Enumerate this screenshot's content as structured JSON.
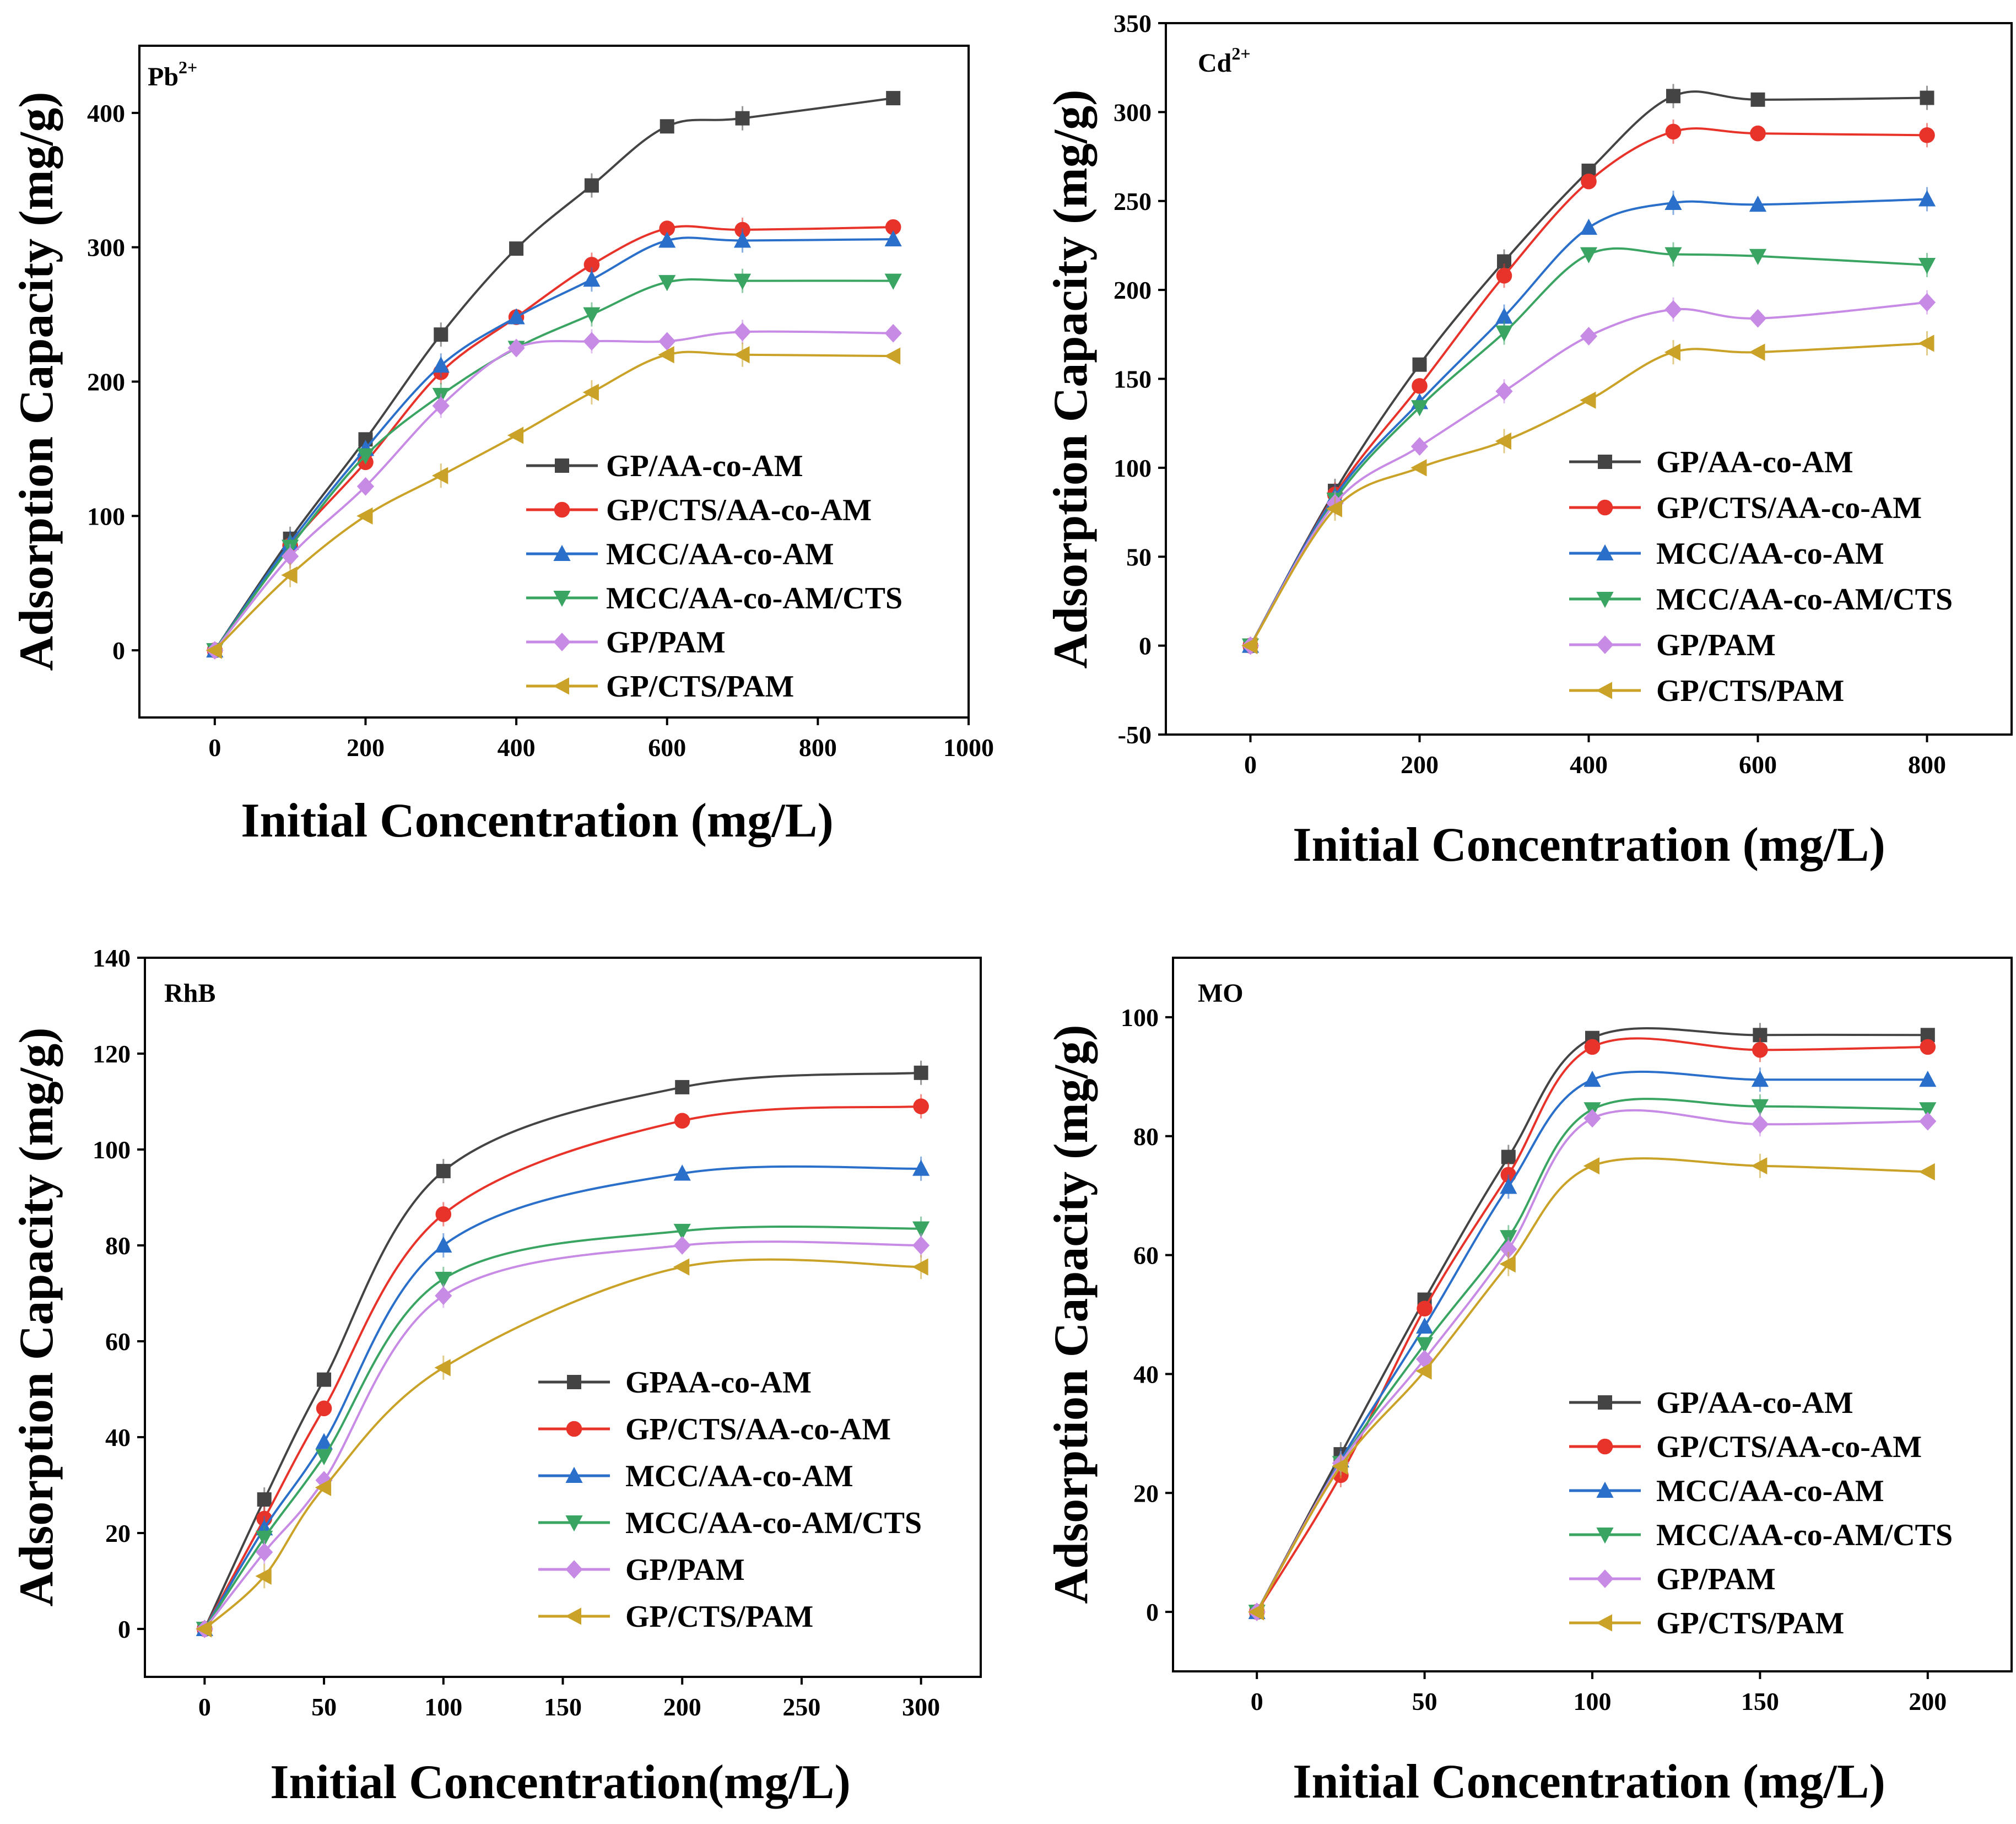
{
  "figure": "Adsorption capacity versus initial concentration for six adsorbents",
  "colors": {
    "black": "#444444",
    "red": "#e8332a",
    "blue": "#2a6fc9",
    "green": "#3aa462",
    "purple": "#c78be6",
    "gold": "#c9a227"
  },
  "chart_data": [
    {
      "type": "line",
      "annotation": "Pb",
      "annotation_sup": "2+",
      "xlabel": "Initial Concentration (mg/L)",
      "ylabel": "Adsorption Capacity (mg/g)",
      "xlim": [
        -100,
        1000
      ],
      "ylim": [
        -50,
        450
      ],
      "xticks": [
        0,
        200,
        400,
        600,
        800,
        1000
      ],
      "yticks": [
        0,
        100,
        200,
        300,
        400
      ],
      "xtick_labels": [
        "0",
        "200",
        "400",
        "600",
        "800",
        "1000"
      ],
      "ytick_labels": [
        "0",
        "100",
        "200",
        "300",
        "400"
      ],
      "x": [
        0,
        100,
        200,
        300,
        400,
        500,
        600,
        700,
        900
      ],
      "series": [
        {
          "name": "GP/AA-co-AM",
          "marker": "square",
          "color": "#444444",
          "values": [
            0,
            83,
            157,
            235,
            299,
            346,
            390,
            396,
            411
          ]
        },
        {
          "name": "GP/CTS/AA-co-AM",
          "marker": "circle",
          "color": "#e8332a",
          "values": [
            0,
            78,
            140,
            207,
            248,
            287,
            314,
            313,
            315
          ]
        },
        {
          "name": "MCC/AA-co-AM",
          "marker": "triangle-up",
          "color": "#2a6fc9",
          "values": [
            0,
            80,
            150,
            212,
            248,
            276,
            305,
            305,
            306
          ]
        },
        {
          "name": "MCC/AA-co-AM/CTS",
          "marker": "triangle-down",
          "color": "#3aa462",
          "values": [
            0,
            77,
            145,
            190,
            225,
            250,
            274,
            275,
            275
          ]
        },
        {
          "name": "GP/PAM",
          "marker": "diamond",
          "color": "#c78be6",
          "values": [
            0,
            70,
            122,
            182,
            225,
            230,
            230,
            237,
            236
          ]
        },
        {
          "name": "GP/CTS/PAM",
          "marker": "triangle-left",
          "color": "#c9a227",
          "values": [
            0,
            56,
            100,
            130,
            160,
            192,
            220,
            220,
            219
          ]
        }
      ]
    },
    {
      "type": "line",
      "annotation": "Cd",
      "annotation_sup": "2+",
      "xlabel": "Initial Concentration (mg/L)",
      "ylabel": "Adsorption Capacity (mg/g)",
      "xlim": [
        -100,
        900
      ],
      "ylim": [
        -50,
        350
      ],
      "xticks": [
        0,
        200,
        400,
        600,
        800
      ],
      "yticks": [
        -50,
        0,
        50,
        100,
        150,
        200,
        250,
        300,
        350
      ],
      "xtick_labels": [
        "0",
        "200",
        "400",
        "600",
        "800"
      ],
      "ytick_labels": [
        "-50",
        "0",
        "50",
        "100",
        "150",
        "200",
        "250",
        "300",
        "350"
      ],
      "x": [
        0,
        100,
        200,
        300,
        400,
        500,
        600,
        800
      ],
      "series": [
        {
          "name": "GP/AA-co-AM",
          "marker": "square",
          "color": "#444444",
          "values": [
            0,
            87,
            158,
            216,
            267,
            309,
            307,
            308
          ]
        },
        {
          "name": "GP/CTS/AA-co-AM",
          "marker": "circle",
          "color": "#e8332a",
          "values": [
            0,
            85,
            146,
            208,
            261,
            289,
            288,
            287
          ]
        },
        {
          "name": "MCC/AA-co-AM",
          "marker": "triangle-up",
          "color": "#2a6fc9",
          "values": [
            0,
            84,
            137,
            185,
            235,
            249,
            248,
            251
          ]
        },
        {
          "name": "MCC/AA-co-AM/CTS",
          "marker": "triangle-down",
          "color": "#3aa462",
          "values": [
            0,
            82,
            134,
            176,
            220,
            220,
            219,
            214
          ]
        },
        {
          "name": "GP/PAM",
          "marker": "diamond",
          "color": "#c78be6",
          "values": [
            0,
            80,
            112,
            143,
            174,
            189,
            184,
            193
          ]
        },
        {
          "name": "GP/CTS/PAM",
          "marker": "triangle-left",
          "color": "#c9a227",
          "values": [
            0,
            77,
            100,
            115,
            138,
            165,
            165,
            170
          ]
        }
      ]
    },
    {
      "type": "line",
      "annotation": "RhB",
      "annotation_sup": "",
      "xlabel": "Initial Concentration(mg/L)",
      "ylabel": "Adsorption Capacity (mg/g)",
      "xlim": [
        -25,
        325
      ],
      "ylim": [
        -10,
        140
      ],
      "xticks": [
        0,
        50,
        100,
        150,
        200,
        250,
        300
      ],
      "yticks": [
        0,
        20,
        40,
        60,
        80,
        100,
        120,
        140
      ],
      "xtick_labels": [
        "0",
        "50",
        "100",
        "150",
        "200",
        "250",
        "300"
      ],
      "ytick_labels": [
        "0",
        "20",
        "40",
        "60",
        "80",
        "100",
        "120",
        "140"
      ],
      "x": [
        0,
        25,
        50,
        100,
        200,
        300
      ],
      "series": [
        {
          "name": "GPAA-co-AM",
          "marker": "square",
          "color": "#444444",
          "values": [
            0,
            27,
            52,
            95.5,
            113,
            116
          ]
        },
        {
          "name": "GP/CTS/AA-co-AM",
          "marker": "circle",
          "color": "#e8332a",
          "values": [
            0,
            23,
            46,
            86.5,
            106,
            109
          ]
        },
        {
          "name": "MCC/AA-co-AM",
          "marker": "triangle-up",
          "color": "#2a6fc9",
          "values": [
            0,
            21,
            39,
            80,
            95,
            96
          ]
        },
        {
          "name": "MCC/AA-co-AM/CTS",
          "marker": "triangle-down",
          "color": "#3aa462",
          "values": [
            0,
            19,
            36,
            73,
            83,
            83.5
          ]
        },
        {
          "name": "GP/PAM",
          "marker": "diamond",
          "color": "#c78be6",
          "values": [
            0,
            16,
            31,
            69.5,
            80,
            80
          ]
        },
        {
          "name": "GP/CTS/PAM",
          "marker": "triangle-left",
          "color": "#c9a227",
          "values": [
            0,
            11,
            29.5,
            54.5,
            75.5,
            75.5
          ]
        }
      ]
    },
    {
      "type": "line",
      "annotation": "MO",
      "annotation_sup": "",
      "xlabel": "Initial Concentration (mg/L)",
      "ylabel": "Adsorption Capacity (mg/g)",
      "xlim": [
        -25,
        225
      ],
      "ylim": [
        -10,
        110
      ],
      "xticks": [
        0,
        50,
        100,
        150,
        200
      ],
      "yticks": [
        0,
        20,
        40,
        60,
        80,
        100
      ],
      "xtick_labels": [
        "0",
        "50",
        "100",
        "150",
        "200"
      ],
      "ytick_labels": [
        "0",
        "20",
        "40",
        "60",
        "80",
        "100"
      ],
      "x": [
        0,
        25,
        50,
        75,
        100,
        150,
        200
      ],
      "series": [
        {
          "name": "GP/AA-co-AM",
          "marker": "square",
          "color": "#444444",
          "values": [
            0,
            26.5,
            52.5,
            76.5,
            96.5,
            97,
            97
          ]
        },
        {
          "name": "GP/CTS/AA-co-AM",
          "marker": "circle",
          "color": "#e8332a",
          "values": [
            0,
            23,
            51,
            73.5,
            95,
            94.5,
            95
          ]
        },
        {
          "name": "MCC/AA-co-AM",
          "marker": "triangle-up",
          "color": "#2a6fc9",
          "values": [
            0,
            25.5,
            48,
            71.5,
            89.5,
            89.5,
            89.5
          ]
        },
        {
          "name": "MCC/AA-co-AM/CTS",
          "marker": "triangle-down",
          "color": "#3aa462",
          "values": [
            0,
            25,
            45,
            63,
            84.5,
            85,
            84.5
          ]
        },
        {
          "name": "GP/PAM",
          "marker": "diamond",
          "color": "#c78be6",
          "values": [
            0,
            25,
            42.5,
            61,
            83,
            82,
            82.5
          ]
        },
        {
          "name": "GP/CTS/PAM",
          "marker": "triangle-left",
          "color": "#c9a227",
          "values": [
            0,
            24.5,
            40.5,
            58.5,
            75,
            75,
            74
          ]
        }
      ]
    }
  ]
}
